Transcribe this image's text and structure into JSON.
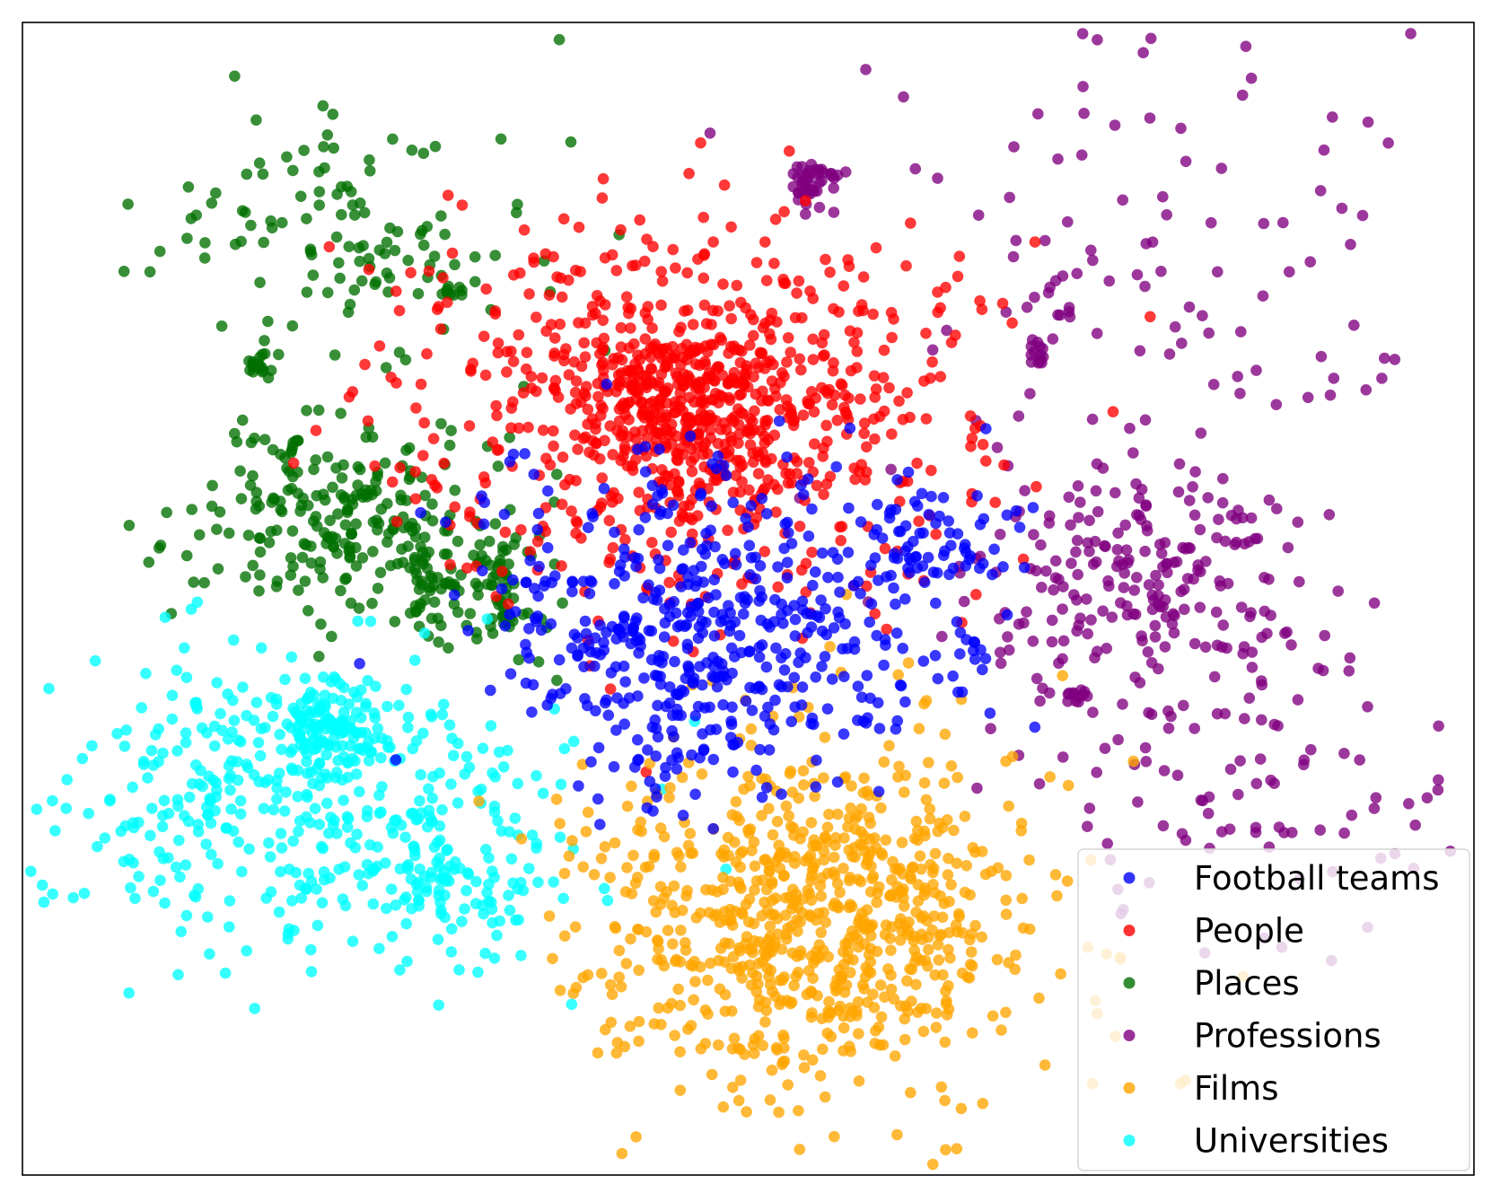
{
  "chart_data": {
    "type": "scatter",
    "title": "",
    "xlabel": "",
    "ylabel": "",
    "axes_ticks_shown": false,
    "grid": false,
    "xlim": [
      0,
      100
    ],
    "ylim": [
      0,
      100
    ],
    "legend": {
      "placement": "bottom-right"
    },
    "series": [
      {
        "name": "Football teams",
        "color": "#0000ff",
        "clusters": [
          {
            "center": [
              47.5,
              47.5
            ],
            "spread": [
              10.5,
              9.5
            ],
            "count": 520
          },
          {
            "center": [
              62.5,
              55.2
            ],
            "spread": [
              3.5,
              3.2
            ],
            "count": 60
          },
          {
            "center": [
              65.5,
              45.8
            ],
            "spread": [
              0.8,
              1.0
            ],
            "count": 8
          }
        ]
      },
      {
        "name": "People",
        "color": "#ff0000",
        "clusters": [
          {
            "center": [
              46.5,
              66.5
            ],
            "spread": [
              12.5,
              10.5
            ],
            "count": 760
          },
          {
            "center": [
              45.5,
              67.0
            ],
            "spread": [
              4.5,
              4.0
            ],
            "count": 180
          }
        ]
      },
      {
        "name": "Places",
        "color": "#007000",
        "clusters": [
          {
            "center": [
              22.0,
              82.0
            ],
            "spread": [
              9.0,
              7.5
            ],
            "count": 120
          },
          {
            "center": [
              21.5,
              57.0
            ],
            "spread": [
              6.5,
              5.5
            ],
            "count": 230
          },
          {
            "center": [
              31.5,
              51.5
            ],
            "spread": [
              3.5,
              4.0
            ],
            "count": 110
          },
          {
            "center": [
              16.5,
              70.5
            ],
            "spread": [
              0.8,
              0.9
            ],
            "count": 20
          },
          {
            "center": [
              29.5,
              77.0
            ],
            "spread": [
              0.6,
              0.6
            ],
            "count": 10
          }
        ]
      },
      {
        "name": "Professions",
        "color": "#800080",
        "clusters": [
          {
            "center": [
              77.5,
              50.5
            ],
            "spread": [
              8.0,
              7.5
            ],
            "count": 230
          },
          {
            "center": [
              76.0,
              79.0
            ],
            "spread": [
              12.0,
              13.0
            ],
            "count": 110
          },
          {
            "center": [
              85.0,
              33.0
            ],
            "spread": [
              10.0,
              9.0
            ],
            "count": 90
          },
          {
            "center": [
              54.5,
              86.0
            ],
            "spread": [
              1.1,
              1.4
            ],
            "count": 45
          },
          {
            "center": [
              70.0,
              71.5
            ],
            "spread": [
              0.7,
              0.8
            ],
            "count": 14
          },
          {
            "center": [
              72.5,
              41.5
            ],
            "spread": [
              0.6,
              0.7
            ],
            "count": 12
          }
        ]
      },
      {
        "name": "Films",
        "color": "#ffa500",
        "clusters": [
          {
            "center": [
              54.5,
              22.0
            ],
            "spread": [
              10.0,
              10.0
            ],
            "count": 800
          }
        ]
      },
      {
        "name": "Universities",
        "color": "#00ffff",
        "clusters": [
          {
            "center": [
              18.5,
              33.0
            ],
            "spread": [
              12.0,
              9.5
            ],
            "count": 420
          },
          {
            "center": [
              21.0,
              38.5
            ],
            "spread": [
              3.0,
              3.0
            ],
            "count": 110
          },
          {
            "center": [
              29.5,
              25.5
            ],
            "spread": [
              4.0,
              3.5
            ],
            "count": 80
          }
        ]
      }
    ]
  }
}
